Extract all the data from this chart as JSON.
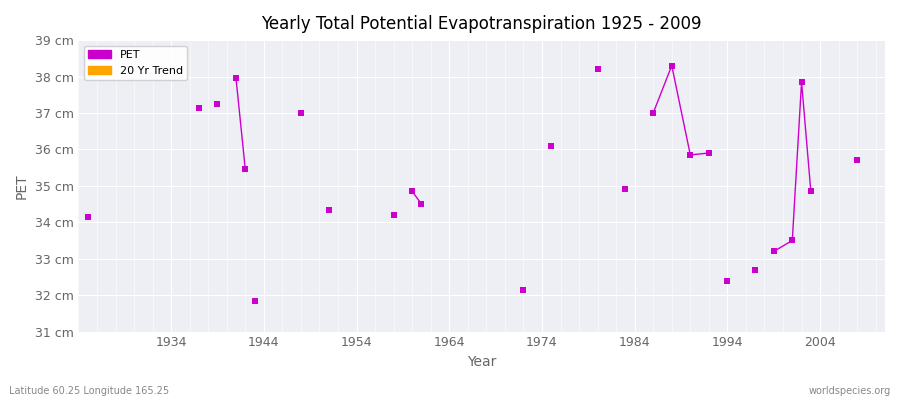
{
  "title": "Yearly Total Potential Evapotranspiration 1925 - 2009",
  "xlabel": "Year",
  "ylabel": "PET",
  "subtitle_lat": "Latitude 60.25 Longitude 165.25",
  "watermark": "worldspecies.org",
  "ylim": [
    31,
    39
  ],
  "xlim": [
    1924,
    2011
  ],
  "yticks": [
    31,
    32,
    33,
    34,
    35,
    36,
    37,
    38,
    39
  ],
  "xticks": [
    1934,
    1944,
    1954,
    1964,
    1974,
    1984,
    1994,
    2004
  ],
  "pet_color": "#CC00CC",
  "trend_color": "#FFA500",
  "bg_color": "#EEEEF5",
  "grid_color": "#FFFFFF",
  "isolated_points": [
    [
      1925,
      34.15
    ],
    [
      1937,
      37.15
    ],
    [
      1939,
      37.25
    ],
    [
      1943,
      31.85
    ],
    [
      1948,
      37.0
    ],
    [
      1951,
      34.35
    ],
    [
      1958,
      34.2
    ],
    [
      1972,
      32.15
    ],
    [
      1975,
      36.1
    ],
    [
      1980,
      38.2
    ],
    [
      1983,
      34.9
    ],
    [
      1994,
      32.4
    ],
    [
      1997,
      32.7
    ],
    [
      2008,
      35.7
    ]
  ],
  "trend_segments": [
    [
      [
        1941,
        37.95
      ],
      [
        1942,
        35.45
      ]
    ],
    [
      [
        1960,
        34.85
      ],
      [
        1961,
        34.5
      ]
    ],
    [
      [
        1986,
        37.0
      ],
      [
        1988,
        38.3
      ],
      [
        1990,
        35.85
      ],
      [
        1992,
        35.9
      ]
    ],
    [
      [
        1999,
        33.2
      ],
      [
        2001,
        33.5
      ],
      [
        2002,
        37.85
      ],
      [
        2003,
        34.85
      ]
    ]
  ]
}
